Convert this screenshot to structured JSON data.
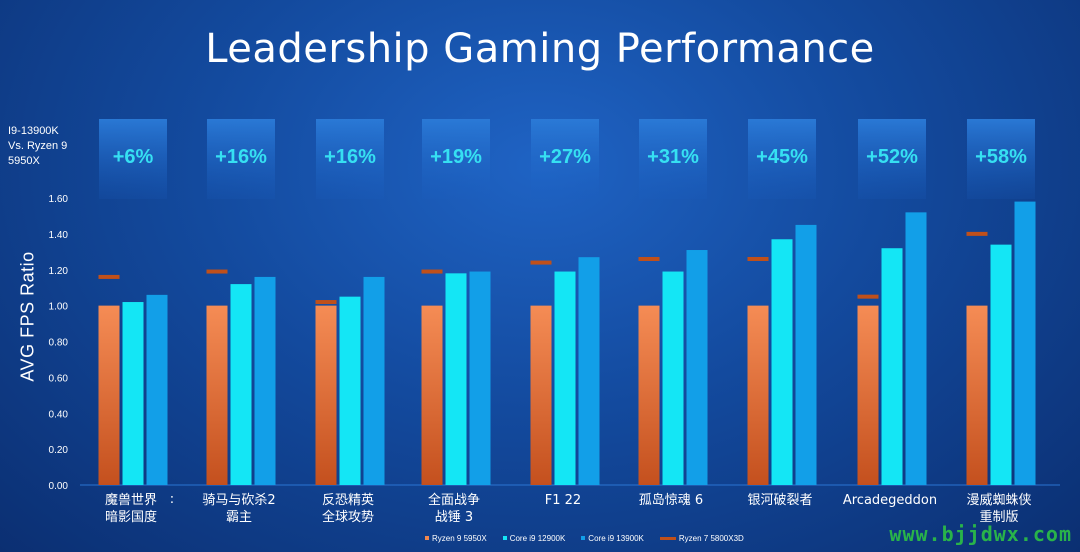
{
  "title": "Leadership Gaming Performance",
  "comparison_label": "I9-13900K\nVs. Ryzen 9\n5950X",
  "watermark": "www.bjjdwx.com",
  "chart_data": {
    "type": "bar",
    "ylabel": "AVG FPS Ratio",
    "ylim": [
      0,
      1.6
    ],
    "yticks": [
      "0.00",
      "0.20",
      "0.40",
      "0.60",
      "0.80",
      "1.00",
      "1.20",
      "1.40",
      "1.60"
    ],
    "categories": [
      "魔兽世界\n暗影国度",
      "骑马与砍杀2\n霸主",
      "反恐精英\n全球攻势",
      "全面战争\n战锤 3",
      "F1 22",
      "孤岛惊魂 6",
      "银河破裂者",
      "Arcadegeddon",
      "漫威蜘蛛侠\n重制版"
    ],
    "improvements": [
      "+6%",
      "+16%",
      "+16%",
      "+19%",
      "+27%",
      "+31%",
      "+45%",
      "+52%",
      "+58%"
    ],
    "series": [
      {
        "name": "Ryzen 9 5950X",
        "color": "#f2874e",
        "values": [
          1.0,
          1.0,
          1.0,
          1.0,
          1.0,
          1.0,
          1.0,
          1.0,
          1.0
        ]
      },
      {
        "name": "Core i9 12900K",
        "color": "#14e6f5",
        "values": [
          1.02,
          1.12,
          1.05,
          1.18,
          1.19,
          1.19,
          1.37,
          1.32,
          1.34
        ]
      },
      {
        "name": "Core i9 13900K",
        "color": "#129fe8",
        "values": [
          1.06,
          1.16,
          1.16,
          1.19,
          1.27,
          1.31,
          1.45,
          1.52,
          1.58
        ]
      }
    ],
    "markers": {
      "name": "Ryzen 7 5800X3D",
      "color": "#c0501a",
      "values": [
        1.16,
        1.19,
        1.02,
        1.19,
        1.24,
        1.26,
        1.26,
        1.05,
        1.4
      ]
    },
    "colon_marker": ":"
  }
}
